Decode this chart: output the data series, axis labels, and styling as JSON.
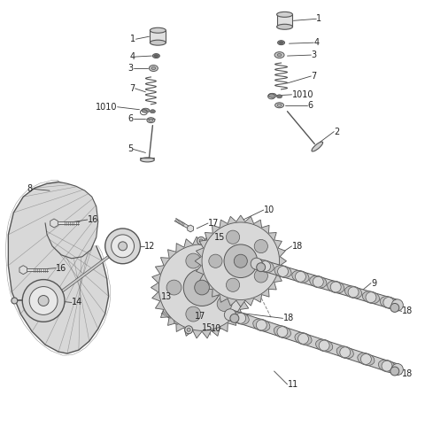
{
  "bg_color": "#ffffff",
  "lc": "#555555",
  "lc2": "#333333",
  "fig_width": 4.8,
  "fig_height": 4.99,
  "dpi": 100
}
